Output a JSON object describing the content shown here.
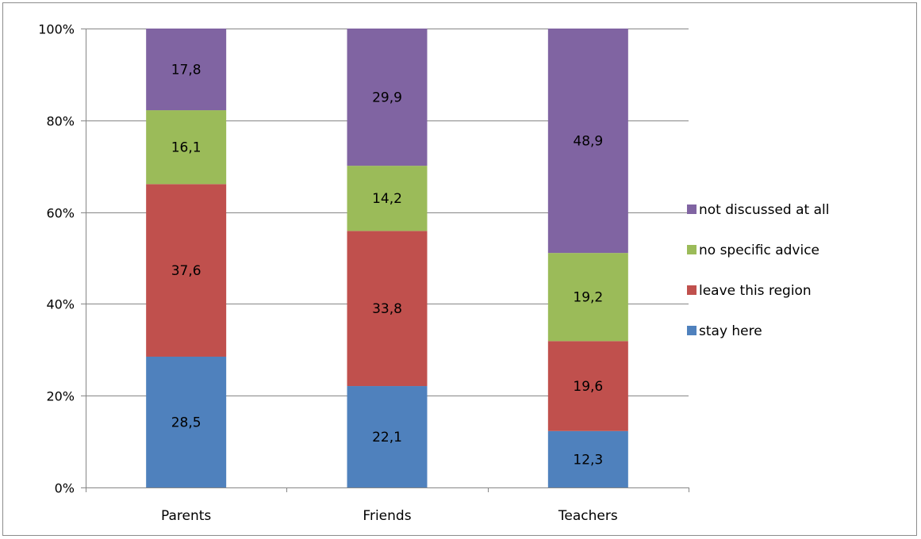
{
  "chart_data": {
    "type": "bar",
    "stacked": true,
    "percent_stacked": true,
    "categories": [
      "Parents",
      "Friends",
      "Teachers"
    ],
    "series": [
      {
        "name": "stay here",
        "color": "#4f81bd",
        "values": [
          28.5,
          22.1,
          12.3
        ],
        "labels": [
          "28,5",
          "22,1",
          "12,3"
        ]
      },
      {
        "name": "leave this region",
        "color": "#c0504d",
        "values": [
          37.6,
          33.8,
          19.6
        ],
        "labels": [
          "37,6",
          "33,8",
          "19,6"
        ]
      },
      {
        "name": "no specific advice",
        "color": "#9bbb59",
        "values": [
          16.1,
          14.2,
          19.2
        ],
        "labels": [
          "16,1",
          "14,2",
          "19,2"
        ]
      },
      {
        "name": "not discussed at all",
        "color": "#8064a2",
        "values": [
          17.8,
          29.9,
          48.9
        ],
        "labels": [
          "17,8",
          "29,9",
          "48,9"
        ]
      }
    ],
    "y_ticks": [
      "0%",
      "20%",
      "40%",
      "60%",
      "80%",
      "100%"
    ],
    "ylim": [
      0,
      100
    ],
    "grid": true,
    "legend_position": "right",
    "legend_order": [
      "not discussed at all",
      "no specific advice",
      "leave this region",
      "stay here"
    ]
  }
}
